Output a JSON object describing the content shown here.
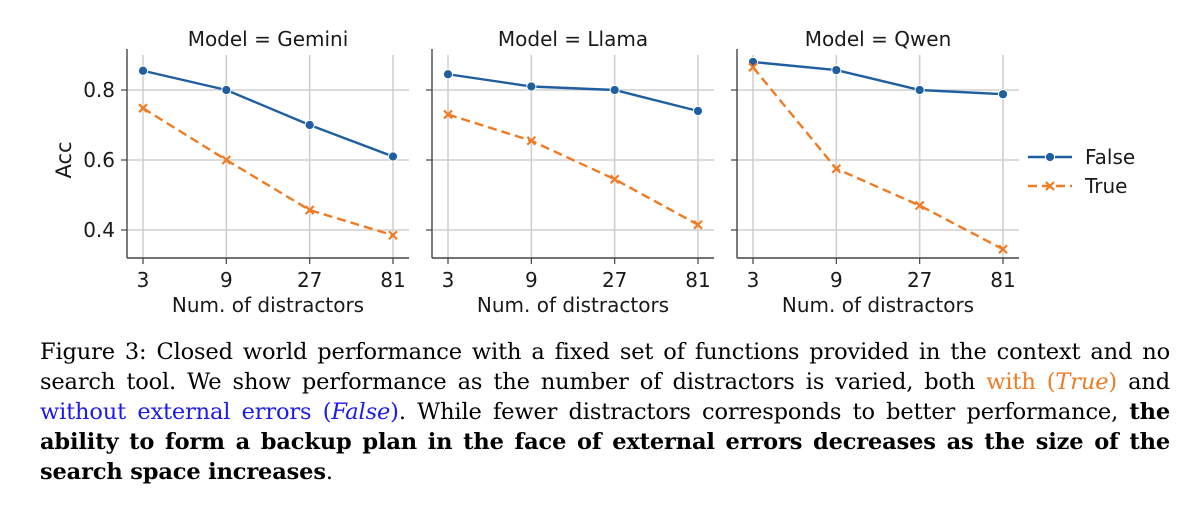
{
  "chart_data": {
    "type": "line",
    "ylabel": "Acc",
    "xlabel": "Num. of distractors",
    "x_categories": [
      "3",
      "9",
      "27",
      "81"
    ],
    "yticks": [
      0.4,
      0.6,
      0.8
    ],
    "ylim": [
      0.32,
      0.9
    ],
    "grid": true,
    "legend_position": "right",
    "legend": [
      {
        "name": "False",
        "color": "#1f5fa0",
        "marker": "circle",
        "dash": "solid"
      },
      {
        "name": "True",
        "color": "#f07b22",
        "marker": "x",
        "dash": "dashed"
      }
    ],
    "panels": [
      {
        "title": "Model = Gemini",
        "series": [
          {
            "name": "False",
            "values": [
              0.855,
              0.8,
              0.7,
              0.61
            ]
          },
          {
            "name": "True",
            "values": [
              0.748,
              0.6,
              0.457,
              0.385
            ]
          }
        ]
      },
      {
        "title": "Model = Llama",
        "series": [
          {
            "name": "False",
            "values": [
              0.845,
              0.81,
              0.8,
              0.74
            ]
          },
          {
            "name": "True",
            "values": [
              0.73,
              0.655,
              0.545,
              0.415
            ]
          }
        ]
      },
      {
        "title": "Model = Qwen",
        "series": [
          {
            "name": "False",
            "values": [
              0.88,
              0.857,
              0.8,
              0.788
            ]
          },
          {
            "name": "True",
            "values": [
              0.865,
              0.575,
              0.47,
              0.345
            ]
          }
        ]
      }
    ]
  },
  "caption": {
    "lead": "Figure 3: Closed world performance with a fixed set of functions provided in the context and no search tool. We show performance as the number of distractors is varied, both ",
    "with": "with",
    "paren_open_1": "(",
    "true_label": "True",
    "paren_close_1": ")",
    "and": " and ",
    "without": "without external errors (",
    "false_label": "False",
    "without_close": ")",
    "mid": ". While fewer distractors corresponds to better performance, ",
    "bold": "the ability to form a backup plan in the face of external errors decreases as the size of the search space increases",
    "end": "."
  }
}
